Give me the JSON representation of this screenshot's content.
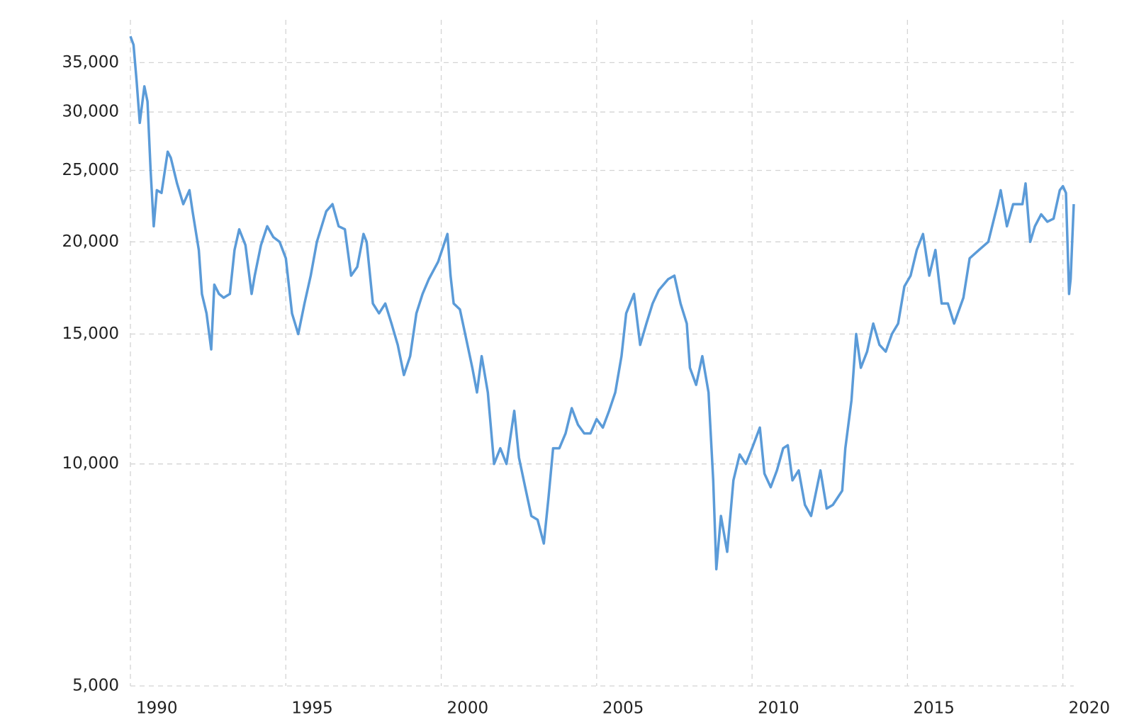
{
  "chart_data": {
    "type": "line",
    "log_y": true,
    "grid": true,
    "color": "#5b9bd8",
    "xlim": [
      1990,
      2020.35
    ],
    "xticks": [
      1990,
      1995,
      2000,
      2005,
      2010,
      2015,
      2020
    ],
    "ylim": [
      5000,
      40000
    ],
    "yticks": [
      {
        "value": 5000,
        "label": "5,000"
      },
      {
        "value": 10000,
        "label": "10,000"
      },
      {
        "value": 15000,
        "label": "15,000"
      },
      {
        "value": 20000,
        "label": "20,000"
      },
      {
        "value": 25000,
        "label": "25,000"
      },
      {
        "value": 30000,
        "label": "30,000"
      },
      {
        "value": 35000,
        "label": "35,000"
      }
    ],
    "x": [
      1990.0,
      1990.1,
      1990.2,
      1990.3,
      1990.45,
      1990.55,
      1990.65,
      1990.75,
      1990.85,
      1991.0,
      1991.2,
      1991.3,
      1991.5,
      1991.7,
      1991.9,
      1992.0,
      1992.2,
      1992.3,
      1992.45,
      1992.6,
      1992.7,
      1992.85,
      1993.0,
      1993.2,
      1993.35,
      1993.5,
      1993.7,
      1993.9,
      1994.0,
      1994.2,
      1994.4,
      1994.6,
      1994.8,
      1995.0,
      1995.2,
      1995.4,
      1995.6,
      1995.8,
      1996.0,
      1996.3,
      1996.5,
      1996.7,
      1996.9,
      1997.1,
      1997.3,
      1997.5,
      1997.6,
      1997.8,
      1998.0,
      1998.2,
      1998.4,
      1998.6,
      1998.8,
      1999.0,
      1999.2,
      1999.4,
      1999.6,
      1999.9,
      2000.2,
      2000.3,
      2000.4,
      2000.6,
      2000.8,
      2001.0,
      2001.15,
      2001.3,
      2001.5,
      2001.7,
      2001.9,
      2002.1,
      2002.35,
      2002.5,
      2002.7,
      2002.9,
      2003.1,
      2003.3,
      2003.45,
      2003.6,
      2003.8,
      2004.0,
      2004.2,
      2004.4,
      2004.6,
      2004.8,
      2005.0,
      2005.2,
      2005.4,
      2005.6,
      2005.8,
      2005.95,
      2006.2,
      2006.4,
      2006.6,
      2006.8,
      2007.0,
      2007.3,
      2007.5,
      2007.7,
      2007.9,
      2008.0,
      2008.2,
      2008.4,
      2008.6,
      2008.75,
      2008.85,
      2009.0,
      2009.2,
      2009.4,
      2009.6,
      2009.8,
      2010.0,
      2010.25,
      2010.4,
      2010.6,
      2010.8,
      2011.0,
      2011.15,
      2011.3,
      2011.5,
      2011.7,
      2011.9,
      2012.2,
      2012.4,
      2012.6,
      2012.9,
      2013.0,
      2013.2,
      2013.35,
      2013.5,
      2013.7,
      2013.9,
      2014.1,
      2014.3,
      2014.5,
      2014.7,
      2014.9,
      2015.1,
      2015.3,
      2015.5,
      2015.7,
      2015.9,
      2016.1,
      2016.3,
      2016.5,
      2016.8,
      2017.0,
      2017.3,
      2017.6,
      2017.9,
      2018.0,
      2018.2,
      2018.4,
      2018.7,
      2018.8,
      2018.95,
      2019.1,
      2019.3,
      2019.5,
      2019.7,
      2019.9,
      2020.0,
      2020.1,
      2020.2,
      2020.25,
      2020.35
    ],
    "values": [
      38000,
      37000,
      33000,
      29000,
      32500,
      31000,
      25000,
      21000,
      23500,
      23300,
      26500,
      26000,
      24000,
      22500,
      23500,
      22000,
      19500,
      17000,
      16000,
      14300,
      17500,
      17000,
      16800,
      17000,
      19500,
      20800,
      19800,
      17000,
      18000,
      19800,
      21000,
      20300,
      20000,
      19000,
      16000,
      15000,
      16500,
      18000,
      20000,
      22000,
      22500,
      21000,
      20800,
      18000,
      18500,
      20500,
      20000,
      16500,
      16000,
      16500,
      15500,
      14500,
      13200,
      14000,
      16000,
      17000,
      17800,
      18800,
      20500,
      18000,
      16500,
      16200,
      14800,
      13500,
      12500,
      14000,
      12500,
      10000,
      10500,
      10000,
      11800,
      10200,
      9300,
      8500,
      8400,
      7800,
      9000,
      10500,
      10500,
      11000,
      11900,
      11300,
      11000,
      11000,
      11500,
      11200,
      11800,
      12500,
      14000,
      16000,
      17000,
      14500,
      15500,
      16500,
      17200,
      17800,
      18000,
      16500,
      15500,
      13500,
      12800,
      14000,
      12500,
      9500,
      7200,
      8500,
      7600,
      9500,
      10300,
      10000,
      10500,
      11200,
      9700,
      9300,
      9800,
      10500,
      10600,
      9500,
      9800,
      8800,
      8500,
      9800,
      8700,
      8800,
      9200,
      10500,
      12200,
      15000,
      13500,
      14200,
      15500,
      14500,
      14200,
      15000,
      15500,
      17400,
      18000,
      19500,
      20500,
      18000,
      19500,
      16500,
      16500,
      15500,
      16800,
      19000,
      19500,
      20000,
      22500,
      23500,
      21000,
      22500,
      22500,
      24000,
      20000,
      21000,
      21800,
      21300,
      21500,
      23500,
      23800,
      23300,
      17000,
      17800,
      22500
    ]
  }
}
